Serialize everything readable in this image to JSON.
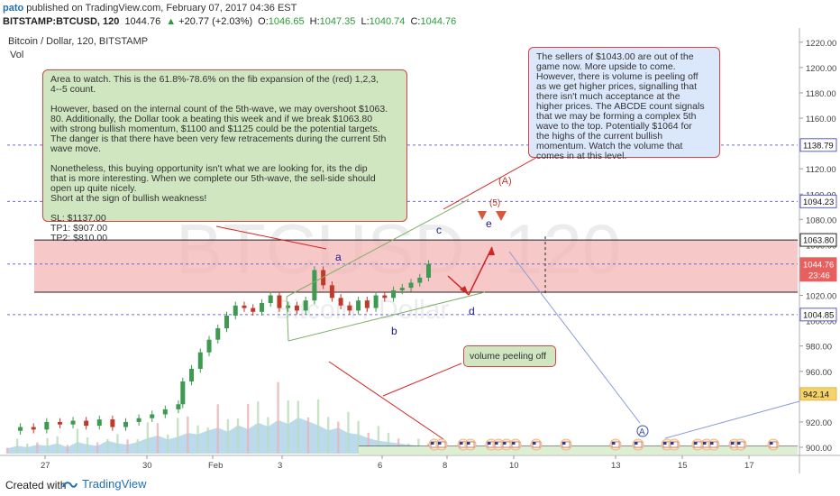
{
  "header": {
    "author": "pato",
    "published_text": "published on TradingView.com, February 07, 2017 04:36 EST"
  },
  "quote": {
    "symbol": "BITSTAMP:BTCUSD, 120",
    "last": "1044.76",
    "change": "+20.77 (+2.03%)",
    "open_label": "O:",
    "open": "1046.65",
    "high_label": "H:",
    "high": "1047.35",
    "low_label": "L:",
    "low": "1040.74",
    "close_label": "C:",
    "close": "1044.76"
  },
  "legend": {
    "title": "Bitcoin / Dollar, 120, BITSTAMP",
    "vol": "Vol"
  },
  "watermark": {
    "main": "BTCUSD, 120",
    "sub": "Bitcoin / Dollar"
  },
  "footer": {
    "created_with": "Created with",
    "brand": "TradingView"
  },
  "notes": {
    "green_main": "Area to watch. This is the 61.8%-78.6% on the fib expansion of the (red) 1,2,3,\n4--5 count.\n\nHowever, based on the internal count of the 5th-wave, we may overshoot $1063.\n80. Additionally, the Dollar took a beating this week and if we break $1063.80\nwith strong bullish momentum, $1100 and $1125 could be the potential targets.\nThe danger is that there have been very few retracements during the current 5th\nwave move.\n\nNonetheless, this buying opportunity isn't what we are looking for, its the dip\nthat is more interesting. When we complete our 5th-wave, the sell-side should\nopen up quite nicely.\nShort at the sign of bullish weakness!\n\nSL: $1137.00\nTP1: $907.00\nTP2: $810.00",
    "blue": "The sellers of $1043.00 are out of the\ngame now. More upside to come.\nHowever, there is volume is peeling off\nas we get higher prices, signalling that\nthere isn't much acceptance at the\nhigher prices. The ABCDE count signals\nthat we may be forming a complex 5th\nwave to the top. Potentially $1064 for\nthe highs of the current bullish\nmomentum. Watch the volume that\ncomes in at this level.",
    "green_small": "volume peeling off"
  },
  "wave_labels": {
    "a": "a",
    "b": "b",
    "c": "c",
    "d": "d",
    "e": "e",
    "five": "(5)",
    "A_paren": "(A)",
    "A_circle": "A"
  },
  "colors": {
    "up": "#3d9a50",
    "down": "#c0392b",
    "zone_fill": "#f3b5b5",
    "zone_line": "#222222",
    "dashed": "#6b6bd6",
    "vol_area": "#9fcbe7",
    "note_green": "#cfe6c0",
    "note_blue": "#dbe7fb"
  },
  "chart_data": {
    "type": "line",
    "title": "Bitcoin / Dollar, 120, BITSTAMP",
    "y_axis": {
      "ticks": [
        900,
        920,
        940,
        960,
        980,
        1000,
        1020,
        1040,
        1060,
        1080,
        1100,
        1120,
        1140,
        1160,
        1180,
        1200,
        1220
      ],
      "range": [
        895,
        1227
      ]
    },
    "x_axis": {
      "ticks": [
        "27",
        "30",
        "Feb",
        "3",
        "6",
        "8",
        "10",
        "13",
        "15",
        "17"
      ]
    },
    "price_labels": [
      {
        "value": 1138.79,
        "label": "1138.79"
      },
      {
        "value": 1094.23,
        "label": "1094.23"
      },
      {
        "value": 1063.8,
        "label": "1063.80"
      },
      {
        "value": 1044.76,
        "label": "1044.76",
        "sub": "23:46"
      },
      {
        "value": 1004.85,
        "label": "1004.85"
      },
      {
        "value": 942.14,
        "label": "942.14"
      }
    ],
    "zone": {
      "upper": 1063.8,
      "lower": 1022.5
    },
    "price_path": [
      [
        0,
        913
      ],
      [
        0.03,
        916
      ],
      [
        0.06,
        914
      ],
      [
        0.09,
        920
      ],
      [
        0.12,
        918
      ],
      [
        0.15,
        921
      ],
      [
        0.18,
        917
      ],
      [
        0.21,
        922
      ],
      [
        0.24,
        916
      ],
      [
        0.27,
        920
      ],
      [
        0.3,
        923
      ],
      [
        0.33,
        926
      ],
      [
        0.36,
        930
      ],
      [
        0.39,
        934
      ],
      [
        0.4,
        952
      ],
      [
        0.42,
        962
      ],
      [
        0.44,
        975
      ],
      [
        0.46,
        985
      ],
      [
        0.48,
        994
      ],
      [
        0.5,
        1004
      ],
      [
        0.52,
        1012
      ],
      [
        0.54,
        1010
      ],
      [
        0.56,
        1007
      ],
      [
        0.58,
        1014
      ],
      [
        0.6,
        1020
      ],
      [
        0.62,
        1010
      ],
      [
        0.64,
        1012
      ],
      [
        0.66,
        1008
      ],
      [
        0.68,
        1016
      ],
      [
        0.7,
        1040
      ],
      [
        0.72,
        1028
      ],
      [
        0.74,
        1018
      ],
      [
        0.76,
        1012
      ],
      [
        0.78,
        1008
      ],
      [
        0.8,
        1016
      ],
      [
        0.82,
        1010
      ],
      [
        0.84,
        1020
      ],
      [
        0.86,
        1018
      ],
      [
        0.88,
        1024
      ],
      [
        0.9,
        1026
      ],
      [
        0.92,
        1030
      ],
      [
        0.94,
        1034
      ],
      [
        0.96,
        1044.76
      ]
    ],
    "volume": [
      4,
      6,
      5,
      7,
      6,
      8,
      5,
      9,
      7,
      6,
      10,
      8,
      7,
      9,
      12,
      14,
      11,
      13,
      16,
      15,
      18,
      20,
      17,
      22,
      19,
      24,
      21,
      26,
      23,
      28,
      25,
      22,
      18,
      20,
      16,
      15,
      12,
      10,
      9,
      8,
      7,
      6,
      5
    ]
  }
}
